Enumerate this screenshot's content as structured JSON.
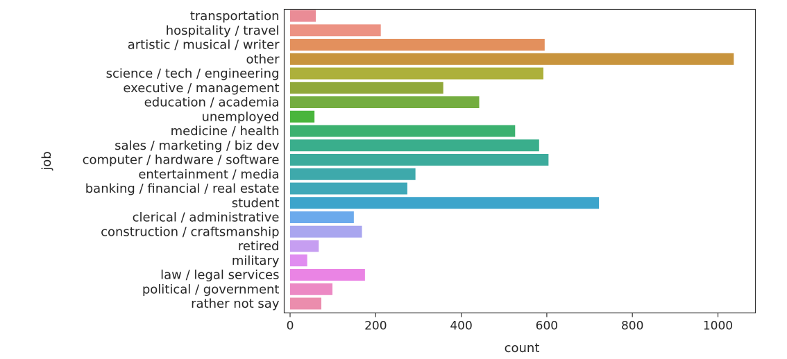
{
  "chart_data": {
    "type": "bar",
    "orientation": "horizontal",
    "title": "",
    "xlabel": "count",
    "ylabel": "job",
    "xlim": [
      0,
      1090
    ],
    "xticks": [
      "0",
      "200",
      "400",
      "600",
      "800",
      "1000"
    ],
    "grid": false,
    "categories": [
      "transportation",
      "hospitality / travel",
      "artistic / musical / writer",
      "other",
      "science / tech / engineering",
      "executive / management",
      "education / academia",
      "unemployed",
      "medicine / health",
      "sales / marketing / biz dev",
      "computer / hardware / software",
      "entertainment / media",
      "banking / financial / real estate",
      "student",
      "clerical / administrative",
      "construction / craftsmanship",
      "retired",
      "military",
      "law / legal services",
      "political / government",
      "rather not say"
    ],
    "values": [
      60,
      212,
      595,
      1037,
      592,
      358,
      442,
      57,
      526,
      582,
      604,
      293,
      274,
      722,
      149,
      168,
      67,
      40,
      175,
      99,
      73
    ],
    "colors": [
      "#ea8c96",
      "#ec9283",
      "#e3905d",
      "#c8943d",
      "#adb03b",
      "#90a83a",
      "#74ad40",
      "#49b53c",
      "#3bb16f",
      "#3aae8c",
      "#3cab9c",
      "#3ea9ab",
      "#3fa8b8",
      "#3ca4cb",
      "#6caaec",
      "#a9a6ef",
      "#c69ef1",
      "#e08df0",
      "#ea84e4",
      "#ec89c4",
      "#eb8dad"
    ]
  }
}
